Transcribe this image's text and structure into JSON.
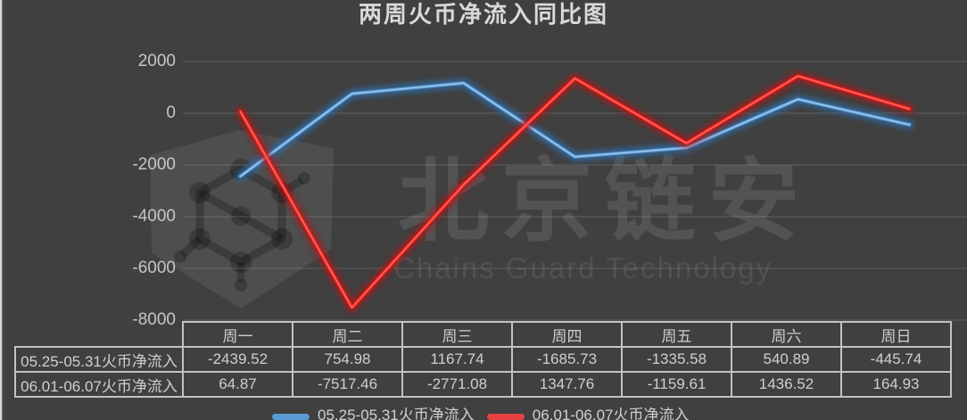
{
  "title": "两周火币净流入同比图",
  "watermark": {
    "cn": "北京链安",
    "en": "Chains Guard Technology",
    "logo_icon": "shield-network-icon"
  },
  "colors": {
    "background": "#404040",
    "grid": "#5f5f5f",
    "axis_text": "#c6c6c6",
    "table_border": "#c2c2c2",
    "table_text": "#cfcfcf",
    "series1_blue": "#5b9bd5",
    "series2_red": "#f52525"
  },
  "chart_data": {
    "type": "line",
    "title": "两周火币净流入同比图",
    "categories": [
      "周一",
      "周二",
      "周三",
      "周四",
      "周五",
      "周六",
      "周日"
    ],
    "series": [
      {
        "name": "05.25-05.31火币净流入",
        "color": "#5b9bd5",
        "glow": "#2d6da8",
        "highlight": "#aecfee",
        "values": [
          -2439.52,
          754.98,
          1167.74,
          -1685.73,
          -1335.58,
          540.89,
          -445.74
        ]
      },
      {
        "name": "06.01-06.07火币净流入",
        "color": "#f52525",
        "glow": "#b51414",
        "highlight": "#ff7a6a",
        "values": [
          64.87,
          -7517.46,
          -2771.08,
          1347.76,
          -1159.61,
          1436.52,
          164.93
        ]
      }
    ],
    "ylim": [
      -8000,
      2000
    ],
    "yticks": [
      2000,
      0,
      -2000,
      -4000,
      -6000,
      -8000
    ],
    "grid": true,
    "legend_position": "bottom",
    "data_table_shown": true
  },
  "legend": {
    "items": [
      {
        "label": "05.25-05.31火币净流入",
        "color": "#5b9bd5"
      },
      {
        "label": "06.01-06.07火币净流入",
        "color": "#e84040"
      }
    ]
  }
}
